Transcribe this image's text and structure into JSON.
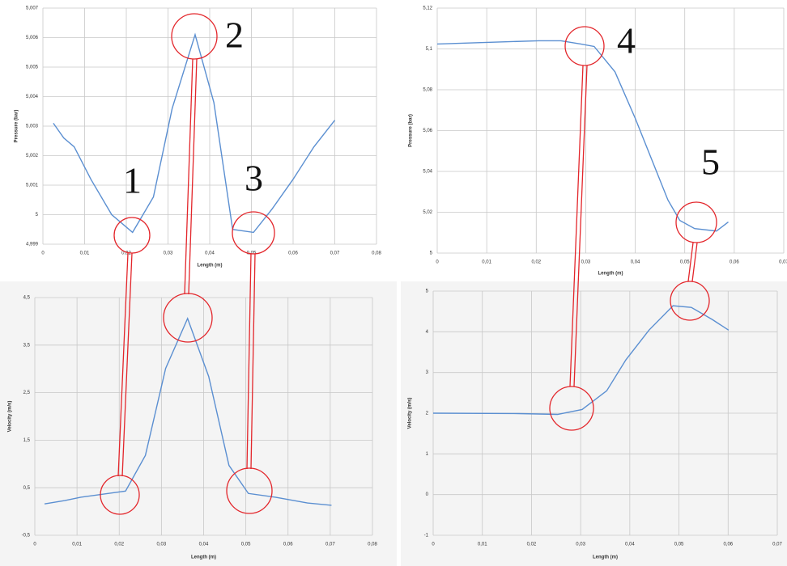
{
  "chart_data": [
    {
      "type": "line",
      "color": "#5b8fd1",
      "x_label": "Length (m)",
      "y_label": "Pressure (bar)",
      "x": [
        0.0025,
        0.005,
        0.0075,
        0.0115,
        0.0165,
        0.0215,
        0.0265,
        0.031,
        0.0365,
        0.041,
        0.0455,
        0.0505,
        0.055,
        0.06,
        0.065,
        0.07
      ],
      "values": [
        5.0031,
        5.0026,
        5.0023,
        5.0012,
        5.0,
        4.9994,
        5.0006,
        5.0036,
        5.0061,
        5.0038,
        4.9995,
        4.9994,
        5.0002,
        5.0012,
        5.0023,
        5.0032
      ],
      "xlim": [
        0,
        0.08
      ],
      "xticks": [
        0,
        {
          "value": 0.01,
          "label": "0,01"
        },
        {
          "value": 0.02,
          "label": "0,02"
        },
        {
          "value": 0.03,
          "label": "0,03"
        },
        {
          "value": 0.04,
          "label": "0,04"
        },
        {
          "value": 0.05,
          "label": "0,05"
        },
        {
          "value": 0.06,
          "label": "0,06"
        },
        {
          "value": 0.07,
          "label": "0,07"
        },
        {
          "value": 0.08,
          "label": "0,08"
        }
      ],
      "ylim": [
        4.999,
        5.007
      ],
      "yticks": [
        {
          "value": 4.999,
          "label": "4,999"
        },
        5,
        {
          "value": 5.001,
          "label": "5,001"
        },
        {
          "value": 5.002,
          "label": "5,002"
        },
        {
          "value": 5.003,
          "label": "5,003"
        },
        {
          "value": 5.004,
          "label": "5,004"
        },
        {
          "value": 5.005,
          "label": "5,005"
        },
        {
          "value": 5.006,
          "label": "5,006"
        },
        {
          "value": 5.007,
          "label": "5,007"
        }
      ],
      "grid": true
    },
    {
      "type": "line",
      "color": "#5b8fd1",
      "x_label": "Length (m)",
      "y_label": "Pressure (bar)",
      "x": [
        0,
        0.0205,
        0.025,
        0.029,
        0.0317,
        0.0359,
        0.04,
        0.0433,
        0.0466,
        0.049,
        0.052,
        0.0564,
        0.0588
      ],
      "values": [
        5.1024,
        5.104,
        5.104,
        5.1024,
        5.1012,
        5.0888,
        5.066,
        5.046,
        5.026,
        5.016,
        5.012,
        5.0108,
        5.0152
      ],
      "xlim": [
        0,
        0.07
      ],
      "xticks": [
        0,
        {
          "value": 0.01,
          "label": "0,01"
        },
        {
          "value": 0.02,
          "label": "0,02"
        },
        {
          "value": 0.03,
          "label": "0,03"
        },
        {
          "value": 0.04,
          "label": "0,04"
        },
        {
          "value": 0.05,
          "label": "0,05"
        },
        {
          "value": 0.06,
          "label": "0,06"
        },
        {
          "value": 0.07,
          "label": "0,07"
        }
      ],
      "ylim": [
        5,
        5.12
      ],
      "yticks": [
        5,
        {
          "value": 5.02,
          "label": "5,02"
        },
        {
          "value": 5.04,
          "label": "5,04"
        },
        {
          "value": 5.06,
          "label": "5,06"
        },
        {
          "value": 5.08,
          "label": "5,08"
        },
        {
          "value": 5.1,
          "label": "5,1"
        },
        {
          "value": 5.12,
          "label": "5,12"
        }
      ],
      "grid": true
    },
    {
      "type": "line",
      "color": "#5b8fd1",
      "x_label": "Length (m)",
      "y_label": "Velocity (m/s)",
      "x": [
        0.0023,
        0.0071,
        0.0109,
        0.0215,
        0.0262,
        0.031,
        0.0362,
        0.0412,
        0.046,
        0.0506,
        0.057,
        0.0646,
        0.0703
      ],
      "values": [
        0.16,
        0.23,
        0.3,
        0.43,
        1.18,
        3.01,
        4.06,
        2.84,
        0.97,
        0.38,
        0.3,
        0.18,
        0.13
      ],
      "xlim": [
        0,
        0.08
      ],
      "xticks": [
        0,
        {
          "value": 0.01,
          "label": "0,01"
        },
        {
          "value": 0.02,
          "label": "0,02"
        },
        {
          "value": 0.03,
          "label": "0,03"
        },
        {
          "value": 0.04,
          "label": "0,04"
        },
        {
          "value": 0.05,
          "label": "0,05"
        },
        {
          "value": 0.06,
          "label": "0,06"
        },
        {
          "value": 0.07,
          "label": "0,07"
        },
        {
          "value": 0.08,
          "label": "0,08"
        }
      ],
      "ylim": [
        -0.5,
        4.5
      ],
      "yticks": [
        {
          "value": -0.5,
          "label": "-0,5"
        },
        {
          "value": 0.5,
          "label": "0,5"
        },
        {
          "value": 1.5,
          "label": "1,5"
        },
        {
          "value": 2.5,
          "label": "2,5"
        },
        {
          "value": 3.5,
          "label": "3,5"
        },
        {
          "value": 4.5,
          "label": "4,5"
        }
      ],
      "grid": true
    },
    {
      "type": "line",
      "color": "#5b8fd1",
      "x_label": "Length (m)",
      "y_label": "Velocity (m/s)",
      "x": [
        0,
        0.0174,
        0.0253,
        0.0303,
        0.0353,
        0.0392,
        0.0439,
        0.0488,
        0.0525,
        0.0568,
        0.0601
      ],
      "values": [
        2.0,
        1.99,
        1.97,
        2.09,
        2.55,
        3.31,
        4.04,
        4.64,
        4.6,
        4.3,
        4.04
      ],
      "xlim": [
        0,
        0.07
      ],
      "xticks": [
        0,
        {
          "value": 0.01,
          "label": "0,01"
        },
        {
          "value": 0.02,
          "label": "0,02"
        },
        {
          "value": 0.03,
          "label": "0,03"
        },
        {
          "value": 0.04,
          "label": "0,04"
        },
        {
          "value": 0.05,
          "label": "0,05"
        },
        {
          "value": 0.06,
          "label": "0,06"
        },
        {
          "value": 0.07,
          "label": "0,07"
        }
      ],
      "ylim": [
        -1,
        5
      ],
      "yticks": [
        -1,
        0,
        1,
        2,
        3,
        4,
        5
      ],
      "grid": true
    }
  ],
  "callouts": [
    "1",
    "2",
    "3",
    "4",
    "5"
  ]
}
